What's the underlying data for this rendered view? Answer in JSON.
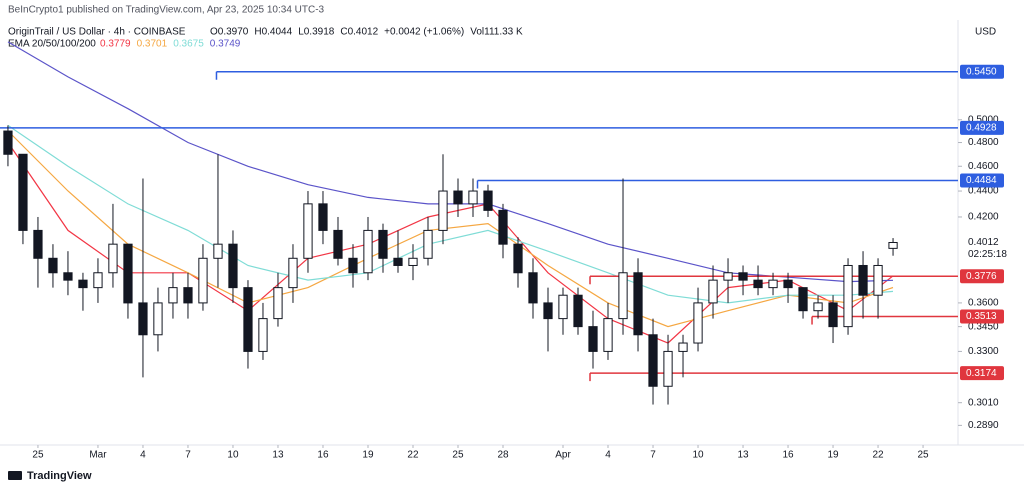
{
  "published": "BeInCrypto1 published on TradingView.com, Apr 23, 2025 10:34 UTC-3",
  "brand": "TradingView",
  "chart_data": {
    "type": "candlestick",
    "title": "OriginTrail / US Dollar · 4h · COINBASE",
    "quote": [
      "O0.3970",
      "H0.4044",
      "L0.3918",
      "C0.4012",
      "+0.0042 (+1.06%)",
      "Vol111.33 K"
    ],
    "currency": "USD",
    "log_scale": true,
    "grid": false,
    "x": [
      -2,
      -1,
      0,
      1,
      2,
      3,
      4,
      5,
      6,
      7,
      8,
      9,
      10,
      11,
      12,
      13,
      14,
      15,
      16,
      17,
      18,
      19,
      20,
      21,
      22,
      23,
      24,
      25,
      26,
      27,
      28,
      29,
      30,
      31,
      32,
      33,
      34,
      35,
      36,
      37,
      38,
      39,
      40,
      41,
      42,
      43,
      44,
      45,
      46,
      47,
      48,
      49,
      50,
      51,
      52,
      53,
      54,
      55,
      56,
      57
    ],
    "open": [
      0.49,
      0.47,
      0.41,
      0.39,
      0.38,
      0.375,
      0.37,
      0.38,
      0.4,
      0.36,
      0.34,
      0.36,
      0.37,
      0.36,
      0.39,
      0.4,
      0.37,
      0.33,
      0.35,
      0.37,
      0.39,
      0.43,
      0.41,
      0.39,
      0.38,
      0.41,
      0.39,
      0.385,
      0.39,
      0.41,
      0.44,
      0.43,
      0.44,
      0.425,
      0.4,
      0.38,
      0.36,
      0.35,
      0.365,
      0.345,
      0.33,
      0.35,
      0.38,
      0.34,
      0.31,
      0.33,
      0.335,
      0.36,
      0.375,
      0.38,
      0.375,
      0.37,
      0.375,
      0.37,
      0.355,
      0.36,
      0.345,
      0.385,
      0.365,
      0.397
    ],
    "high": [
      0.495,
      0.47,
      0.42,
      0.4,
      0.395,
      0.38,
      0.39,
      0.43,
      0.4,
      0.45,
      0.37,
      0.38,
      0.38,
      0.4,
      0.47,
      0.41,
      0.375,
      0.36,
      0.38,
      0.4,
      0.44,
      0.44,
      0.42,
      0.4,
      0.42,
      0.415,
      0.41,
      0.4,
      0.42,
      0.47,
      0.45,
      0.45,
      0.445,
      0.43,
      0.405,
      0.39,
      0.37,
      0.37,
      0.37,
      0.355,
      0.36,
      0.45,
      0.39,
      0.35,
      0.34,
      0.34,
      0.37,
      0.385,
      0.39,
      0.385,
      0.385,
      0.38,
      0.38,
      0.37,
      0.365,
      0.365,
      0.39,
      0.395,
      0.39,
      0.4044
    ],
    "low": [
      0.46,
      0.4,
      0.37,
      0.37,
      0.365,
      0.355,
      0.36,
      0.37,
      0.35,
      0.315,
      0.33,
      0.35,
      0.35,
      0.355,
      0.37,
      0.36,
      0.32,
      0.325,
      0.345,
      0.36,
      0.38,
      0.4,
      0.385,
      0.37,
      0.375,
      0.38,
      0.38,
      0.375,
      0.385,
      0.4,
      0.42,
      0.42,
      0.42,
      0.39,
      0.37,
      0.35,
      0.33,
      0.34,
      0.34,
      0.32,
      0.325,
      0.34,
      0.33,
      0.3,
      0.3,
      0.315,
      0.33,
      0.35,
      0.36,
      0.365,
      0.365,
      0.365,
      0.36,
      0.35,
      0.35,
      0.335,
      0.34,
      0.35,
      0.35,
      0.3918
    ],
    "close": [
      0.47,
      0.41,
      0.39,
      0.38,
      0.375,
      0.37,
      0.38,
      0.4,
      0.36,
      0.34,
      0.36,
      0.37,
      0.36,
      0.39,
      0.4,
      0.37,
      0.33,
      0.35,
      0.37,
      0.39,
      0.43,
      0.41,
      0.39,
      0.38,
      0.41,
      0.39,
      0.385,
      0.39,
      0.41,
      0.44,
      0.43,
      0.44,
      0.425,
      0.4,
      0.38,
      0.36,
      0.35,
      0.365,
      0.345,
      0.33,
      0.35,
      0.38,
      0.34,
      0.31,
      0.33,
      0.335,
      0.36,
      0.375,
      0.38,
      0.375,
      0.37,
      0.375,
      0.37,
      0.355,
      0.36,
      0.345,
      0.385,
      0.365,
      0.385,
      0.4012
    ],
    "up_color": "#ffffff",
    "down_color": "#131722",
    "xlim": [
      -2.53,
      61.33
    ],
    "ylim": [
      0.279,
      0.598
    ],
    "xticks": [
      {
        "value": 0,
        "label": "25"
      },
      {
        "value": 4,
        "label": "Mar"
      },
      {
        "value": 7,
        "label": "4"
      },
      {
        "value": 10,
        "label": "7"
      },
      {
        "value": 13,
        "label": "10"
      },
      {
        "value": 16,
        "label": "13"
      },
      {
        "value": 19,
        "label": "16"
      },
      {
        "value": 22,
        "label": "19"
      },
      {
        "value": 25,
        "label": "22"
      },
      {
        "value": 28,
        "label": "25"
      },
      {
        "value": 31,
        "label": "28"
      },
      {
        "value": 35,
        "label": "Apr"
      },
      {
        "value": 38,
        "label": "4"
      },
      {
        "value": 41,
        "label": "7"
      },
      {
        "value": 44,
        "label": "10"
      },
      {
        "value": 47,
        "label": "13"
      },
      {
        "value": 50,
        "label": "16"
      },
      {
        "value": 53,
        "label": "19"
      },
      {
        "value": 56,
        "label": "22"
      },
      {
        "value": 59,
        "label": "25"
      }
    ],
    "yticks": [
      {
        "value": 0.5,
        "label": "0.5000"
      },
      {
        "value": 0.48,
        "label": "0.4800"
      },
      {
        "value": 0.46,
        "label": "0.4600"
      },
      {
        "value": 0.44,
        "label": "0.4400"
      },
      {
        "value": 0.42,
        "label": "0.4200"
      },
      {
        "value": 0.36,
        "label": "0.3600"
      },
      {
        "value": 0.345,
        "label": "0.3450"
      },
      {
        "value": 0.33,
        "label": "0.3300"
      },
      {
        "value": 0.301,
        "label": "0.3010"
      },
      {
        "value": 0.289,
        "label": "0.2890"
      }
    ],
    "ema": {
      "label": "EMA 20/50/100/200",
      "x": [
        -2,
        2,
        6,
        10,
        14,
        18,
        22,
        26,
        30,
        34,
        38,
        42,
        46,
        50,
        54,
        57
      ],
      "series": [
        {
          "color": "#f23645",
          "values": [
            0.48,
            0.41,
            0.38,
            0.38,
            0.355,
            0.39,
            0.4,
            0.42,
            0.43,
            0.38,
            0.35,
            0.335,
            0.37,
            0.375,
            0.355,
            0.3779
          ]
        },
        {
          "color": "#f5a742",
          "values": [
            0.49,
            0.44,
            0.4,
            0.38,
            0.36,
            0.37,
            0.39,
            0.41,
            0.415,
            0.385,
            0.36,
            0.345,
            0.355,
            0.365,
            0.36,
            0.3701
          ]
        },
        {
          "color": "#7fdcd6",
          "values": [
            0.495,
            0.46,
            0.43,
            0.41,
            0.385,
            0.375,
            0.38,
            0.4,
            0.41,
            0.395,
            0.38,
            0.365,
            0.36,
            0.365,
            0.365,
            0.3675
          ]
        },
        {
          "color": "#5b54c9",
          "values": [
            0.575,
            0.54,
            0.51,
            0.48,
            0.46,
            0.445,
            0.435,
            0.43,
            0.43,
            0.415,
            0.4,
            0.39,
            0.38,
            0.377,
            0.374,
            0.3749
          ]
        }
      ]
    },
    "levels": [
      {
        "value": 0.545,
        "label": "0.5450",
        "color": "#2e5ee0",
        "start": 11.9
      },
      {
        "value": 0.4928,
        "label": "0.4928",
        "color": "#2e5ee0",
        "start": -2.53
      },
      {
        "value": 0.4484,
        "label": "0.4484",
        "color": "#2e5ee0",
        "start": 29.3
      },
      {
        "value": 0.3776,
        "label": "0.3776",
        "color": "#e0363e",
        "start": 36.8
      },
      {
        "value": 0.3513,
        "label": "0.3513",
        "color": "#e0363e",
        "start": 51.6
      },
      {
        "value": 0.3174,
        "label": "0.3174",
        "color": "#e0363e",
        "start": 36.8
      }
    ],
    "last_price": 0.4012,
    "countdown": "02:25:18"
  }
}
